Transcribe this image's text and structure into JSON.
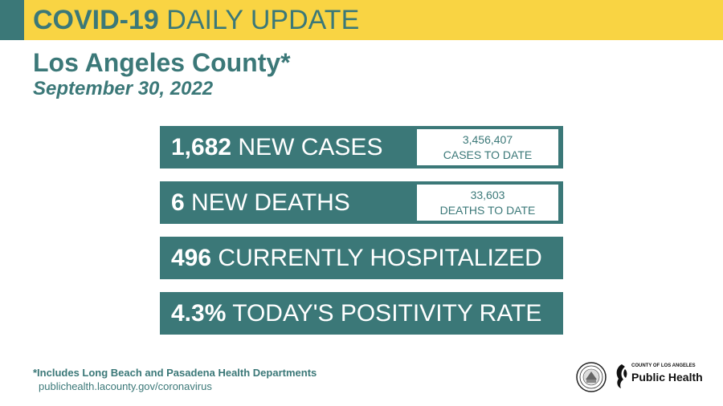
{
  "header": {
    "title_bold": "COVID-19",
    "title_rest": "DAILY UPDATE"
  },
  "county": "Los Angeles County*",
  "date": "September 30, 2022",
  "stats": [
    {
      "number": "1,682",
      "label": "NEW CASES",
      "to_date_value": "3,456,407",
      "to_date_label": "CASES TO DATE"
    },
    {
      "number": "6",
      "label": "NEW DEATHS",
      "to_date_value": "33,603",
      "to_date_label": "DEATHS TO DATE"
    },
    {
      "number": "496",
      "label": "CURRENTLY HOSPITALIZED"
    },
    {
      "number": "4.3%",
      "label": "TODAY'S POSITIVITY RATE"
    }
  ],
  "footnote": "*Includes Long Beach and Pasadena Health Departments",
  "url": "publichealth.lacounty.gov/coronavirus",
  "logo": {
    "small_text": "COUNTY OF LOS ANGELES",
    "big_text": "Public Health"
  },
  "colors": {
    "teal": "#3b7878",
    "yellow": "#f9d443"
  }
}
